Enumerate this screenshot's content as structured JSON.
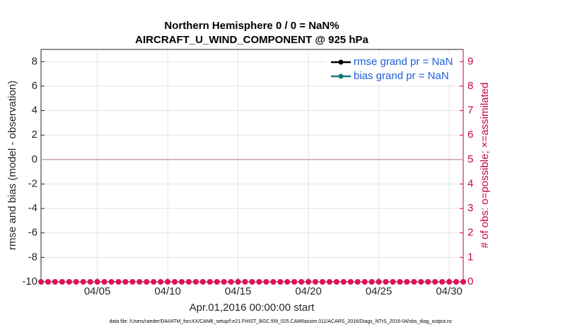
{
  "chart_data": {
    "type": "line",
    "title": "Northern Hemisphere 0 / 0 = NaN%",
    "subtitle": "AIRCRAFT_U_WIND_COMPONENT @ 925 hPa",
    "xlabel": "Apr.01,2016 00:00:00 start",
    "ylabel": "rmse and bias (model - observation)",
    "y2label": "# of obs: o=possible; ×=assimilated",
    "footnote": "data file: /Users/raeder/DAI/ATM_forcXX/CAM6_setup/f.e21.FHIST_BGC.f09_025.CAM6assim.011/ACARS_2016/Diags_NTrS_2016-04/obs_diag_output.nc",
    "xlim": [
      1,
      31
    ],
    "xticks": [
      {
        "value": 5,
        "label": "04/05"
      },
      {
        "value": 10,
        "label": "04/10"
      },
      {
        "value": 15,
        "label": "04/15"
      },
      {
        "value": 20,
        "label": "04/20"
      },
      {
        "value": 25,
        "label": "04/25"
      },
      {
        "value": 30,
        "label": "04/30"
      }
    ],
    "ylim": [
      -10,
      9
    ],
    "yticks": [
      -10,
      -8,
      -6,
      -4,
      -2,
      0,
      2,
      4,
      6,
      8
    ],
    "y2lim": [
      0,
      9.5
    ],
    "y2ticks": [
      0,
      1,
      2,
      3,
      4,
      5,
      6,
      7,
      8,
      9
    ],
    "grid": true,
    "legend": "upper right",
    "reference_line": {
      "value": 0,
      "color": "#c9a0a8"
    },
    "x": [
      1,
      1.5,
      2,
      2.5,
      3,
      3.5,
      4,
      4.5,
      5,
      5.5,
      6,
      6.5,
      7,
      7.5,
      8,
      8.5,
      9,
      9.5,
      10,
      10.5,
      11,
      11.5,
      12,
      12.5,
      13,
      13.5,
      14,
      14.5,
      15,
      15.5,
      16,
      16.5,
      17,
      17.5,
      18,
      18.5,
      19,
      19.5,
      20,
      20.5,
      21,
      21.5,
      22,
      22.5,
      23,
      23.5,
      24,
      24.5,
      25,
      25.5,
      26,
      26.5,
      27,
      27.5,
      28,
      28.5,
      29,
      29.5,
      30,
      30.5,
      31
    ],
    "series": [
      {
        "name": "rmse grand pr = NaN",
        "color": "#000000"
      },
      {
        "name": "bias grand pr = NaN",
        "color": "#127a80"
      }
    ],
    "obs_counts": {
      "axis": "y2",
      "color": "#e0105a",
      "values": [
        0,
        0,
        0,
        0,
        0,
        0,
        0,
        0,
        0,
        0,
        0,
        0,
        0,
        0,
        0,
        0,
        0,
        0,
        0,
        0,
        0,
        0,
        0,
        0,
        0,
        0,
        0,
        0,
        0,
        0,
        0,
        0,
        0,
        0,
        0,
        0,
        0,
        0,
        0,
        0,
        0,
        0,
        0,
        0,
        0,
        0,
        0,
        0,
        0,
        0,
        0,
        0,
        0,
        0,
        0,
        0,
        0,
        0,
        0,
        0,
        0
      ]
    }
  }
}
